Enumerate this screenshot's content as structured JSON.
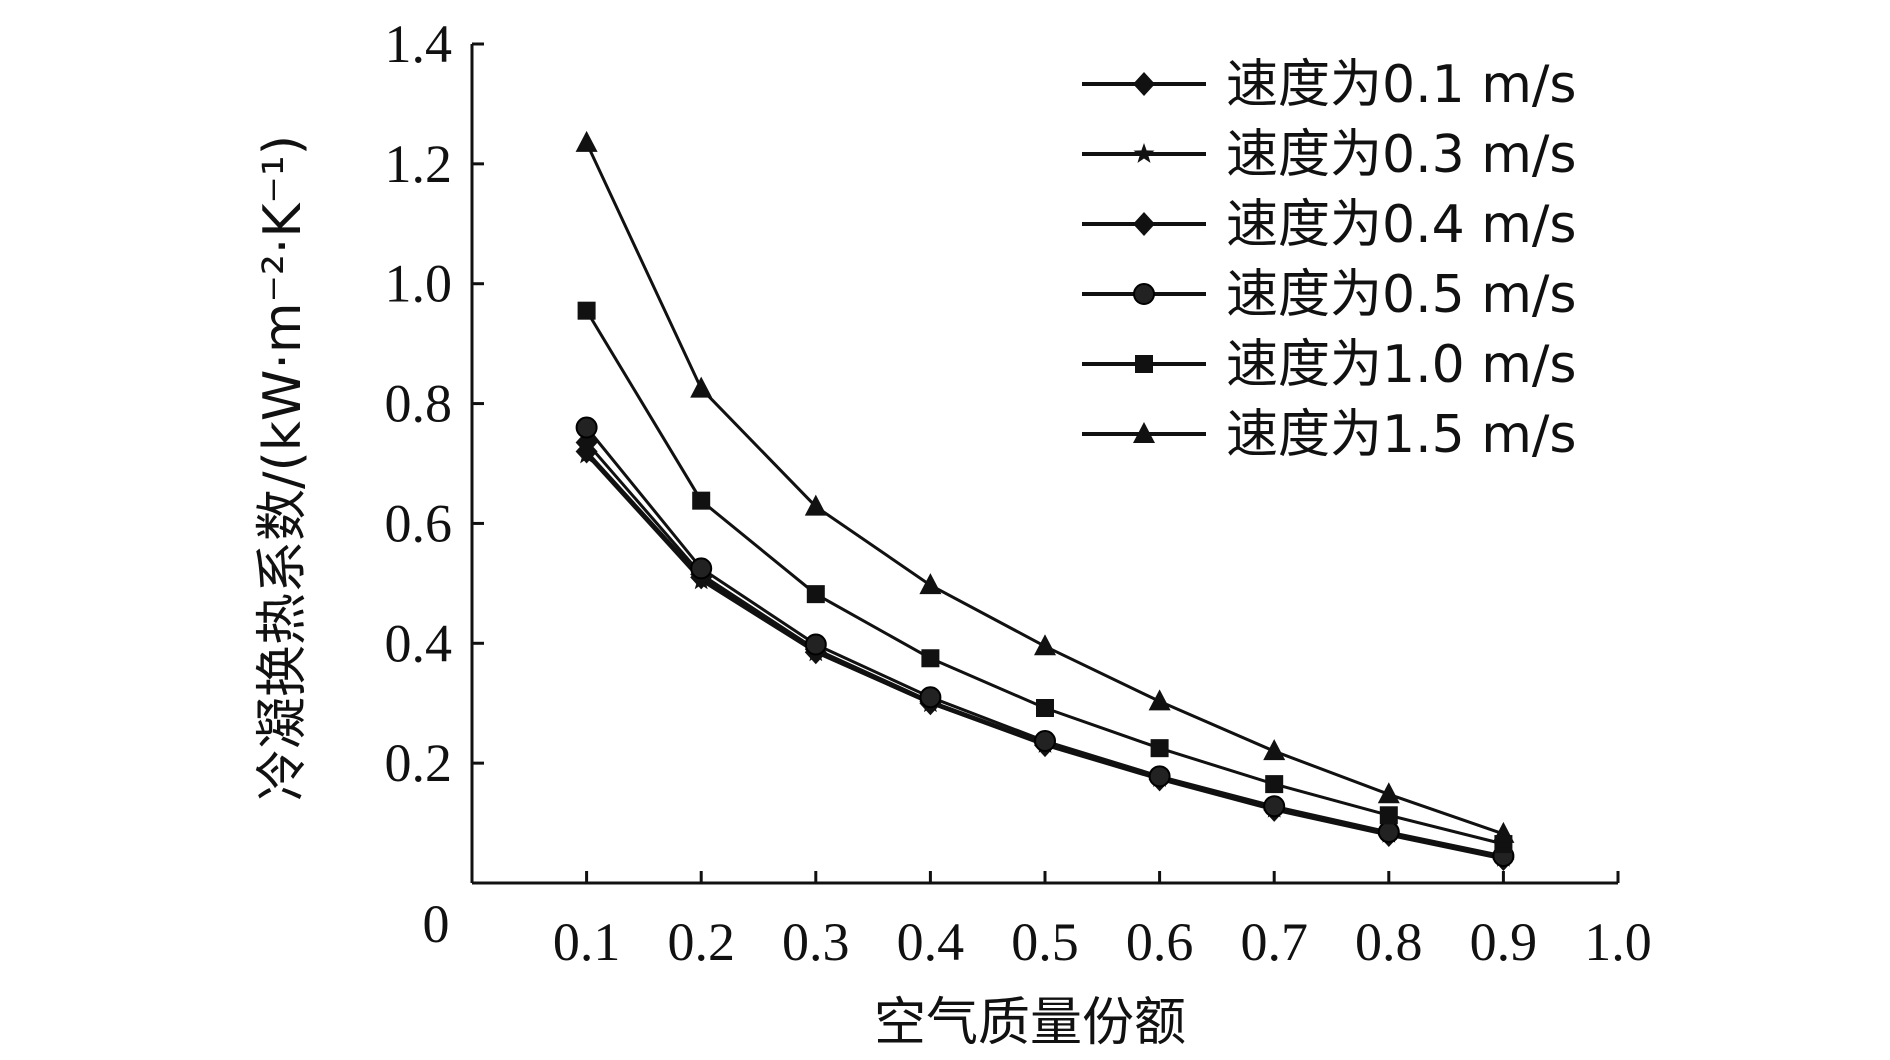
{
  "chart_data": {
    "type": "line",
    "title": "",
    "xlabel": "空气质量份额",
    "ylabel": "冷凝换热系数/(kW·m⁻²·K⁻¹)",
    "origin_label": "0",
    "xlim": [
      0,
      1.0
    ],
    "ylim": [
      0,
      1.4
    ],
    "x_ticks": [
      "0.1",
      "0.2",
      "0.3",
      "0.4",
      "0.5",
      "0.6",
      "0.7",
      "0.8",
      "0.9",
      "1.0"
    ],
    "y_ticks": [
      "0.2",
      "0.4",
      "0.6",
      "0.8",
      "1.0",
      "1.2",
      "1.4"
    ],
    "grid": false,
    "legend_position": "top-right",
    "x": [
      0.1,
      0.2,
      0.3,
      0.4,
      0.5,
      0.6,
      0.7,
      0.8,
      0.9
    ],
    "series": [
      {
        "name": "速度为0.1 m/s",
        "marker": "diamond",
        "values": [
          0.72,
          0.51,
          0.385,
          0.3,
          0.23,
          0.173,
          0.122,
          0.08,
          0.04
        ]
      },
      {
        "name": "速度为0.3 m/s",
        "marker": "star",
        "values": [
          0.715,
          0.505,
          0.385,
          0.3,
          0.232,
          0.175,
          0.124,
          0.082,
          0.042
        ]
      },
      {
        "name": "速度为0.4 m/s",
        "marker": "diamond",
        "values": [
          0.735,
          0.515,
          0.39,
          0.303,
          0.233,
          0.176,
          0.125,
          0.082,
          0.043
        ]
      },
      {
        "name": "速度为0.5 m/s",
        "marker": "circle",
        "values": [
          0.76,
          0.525,
          0.398,
          0.31,
          0.237,
          0.178,
          0.128,
          0.085,
          0.045
        ]
      },
      {
        "name": "速度为1.0 m/s",
        "marker": "square",
        "values": [
          0.955,
          0.638,
          0.482,
          0.375,
          0.292,
          0.225,
          0.165,
          0.113,
          0.065
        ]
      },
      {
        "name": "速度为1.5 m/s",
        "marker": "triangle",
        "values": [
          1.235,
          0.825,
          0.628,
          0.497,
          0.395,
          0.303,
          0.22,
          0.148,
          0.082
        ]
      }
    ]
  }
}
